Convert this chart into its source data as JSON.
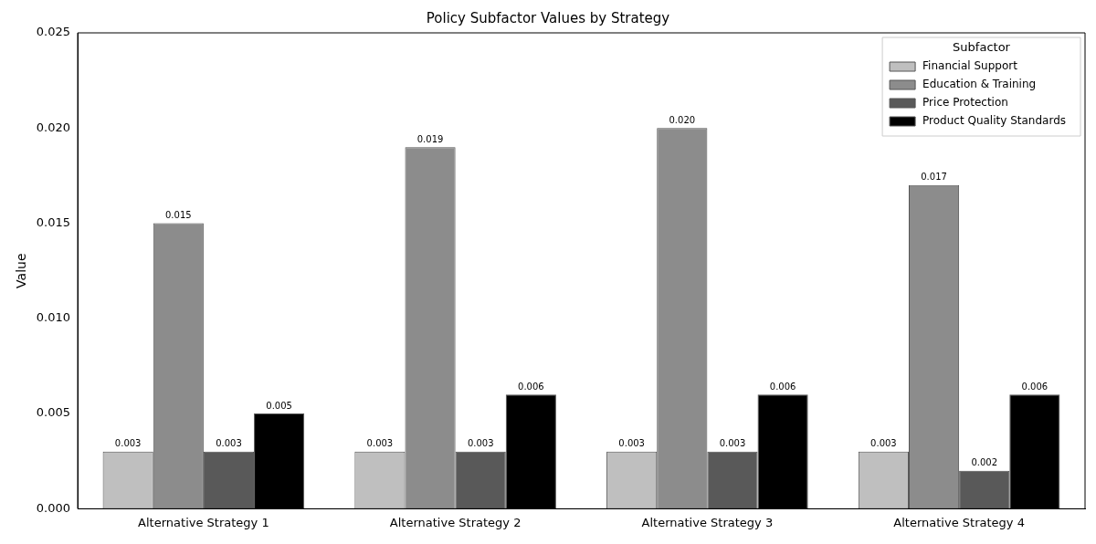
{
  "chart_data": {
    "type": "bar",
    "title": "Policy Subfactor Values by Strategy",
    "ylabel": "Value",
    "legend_title": "Subfactor",
    "legend": "top right",
    "grid": false,
    "categories": [
      "Alternative Strategy 1",
      "Alternative Strategy 2",
      "Alternative Strategy 3",
      "Alternative Strategy 4"
    ],
    "ylim": [
      0,
      0.025
    ],
    "yticks": [
      {
        "value": 0,
        "label": "0.000"
      },
      {
        "value": 0.005,
        "label": "0.005"
      },
      {
        "value": 0.01,
        "label": "0.010"
      },
      {
        "value": 0.015,
        "label": "0.015"
      },
      {
        "value": 0.02,
        "label": "0.020"
      },
      {
        "value": 0.025,
        "label": "0.025"
      }
    ],
    "series": [
      {
        "name": "Financial Support",
        "color": "#bfbfbf",
        "values": [
          0.003,
          0.003,
          0.003,
          0.003
        ],
        "value_labels": [
          "0.003",
          "0.003",
          "0.003",
          "0.003"
        ]
      },
      {
        "name": "Education & Training",
        "color": "#8c8c8c",
        "values": [
          0.015,
          0.019,
          0.02,
          0.017
        ],
        "value_labels": [
          "0.015",
          "0.019",
          "0.020",
          "0.017"
        ]
      },
      {
        "name": "Price Protection",
        "color": "#595959",
        "values": [
          0.003,
          0.003,
          0.003,
          0.002
        ],
        "value_labels": [
          "0.003",
          "0.003",
          "0.003",
          "0.002"
        ]
      },
      {
        "name": "Product Quality Standards",
        "color": "#000000",
        "values": [
          0.005,
          0.006,
          0.006,
          0.006
        ],
        "value_labels": [
          "0.005",
          "0.006",
          "0.006",
          "0.006"
        ]
      }
    ]
  }
}
